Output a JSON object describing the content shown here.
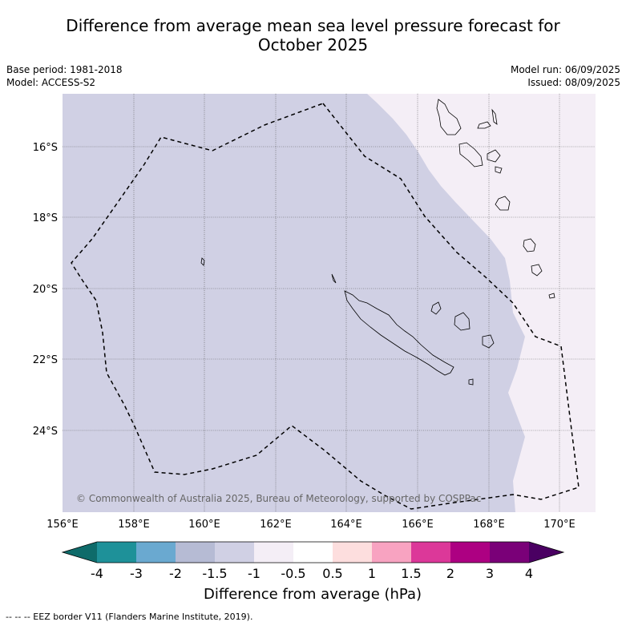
{
  "header": {
    "title_line1": "Difference from average mean sea level pressure forecast for",
    "title_line2": "October 2025",
    "base_period": "Base period: 1981-2018",
    "model": "Model: ACCESS-S2",
    "model_run": "Model run: 06/09/2025",
    "issued": "Issued: 08/09/2025"
  },
  "map": {
    "copyright": "© Commonwealth of Australia 2025, Bureau of Meteorology, supported by COSPPac",
    "lat_ticks": [
      "16°S",
      "18°S",
      "20°S",
      "22°S",
      "24°S"
    ],
    "lon_ticks": [
      "156°E",
      "158°E",
      "160°E",
      "162°E",
      "164°E",
      "166°E",
      "168°E",
      "170°E"
    ],
    "extent": {
      "lon": [
        156,
        171
      ],
      "lat": [
        -14.5,
        -26.2
      ]
    },
    "fill_colors": {
      "minus1_to_minus1_5": "#d0d0e4",
      "minus0_5_to_minus1": "#f4eef6"
    }
  },
  "colorbar": {
    "label": "Difference from average (hPa)",
    "ticks": [
      "-4",
      "-3",
      "-2",
      "-1.5",
      "-1",
      "-0.5",
      "0.5",
      "1",
      "1.5",
      "2",
      "3",
      "4"
    ],
    "colors": [
      "#0e6b6a",
      "#1e9199",
      "#6aa9d0",
      "#b6bbd4",
      "#d0d0e4",
      "#f4eef6",
      "#ffffff",
      "#fddede",
      "#f8a3c1",
      "#dc3899",
      "#ad0082",
      "#7a0078",
      "#4a0062"
    ]
  },
  "footer": {
    "legend": "--  --  -- EEZ border V11 (Flanders Marine Institute, 2019)."
  }
}
